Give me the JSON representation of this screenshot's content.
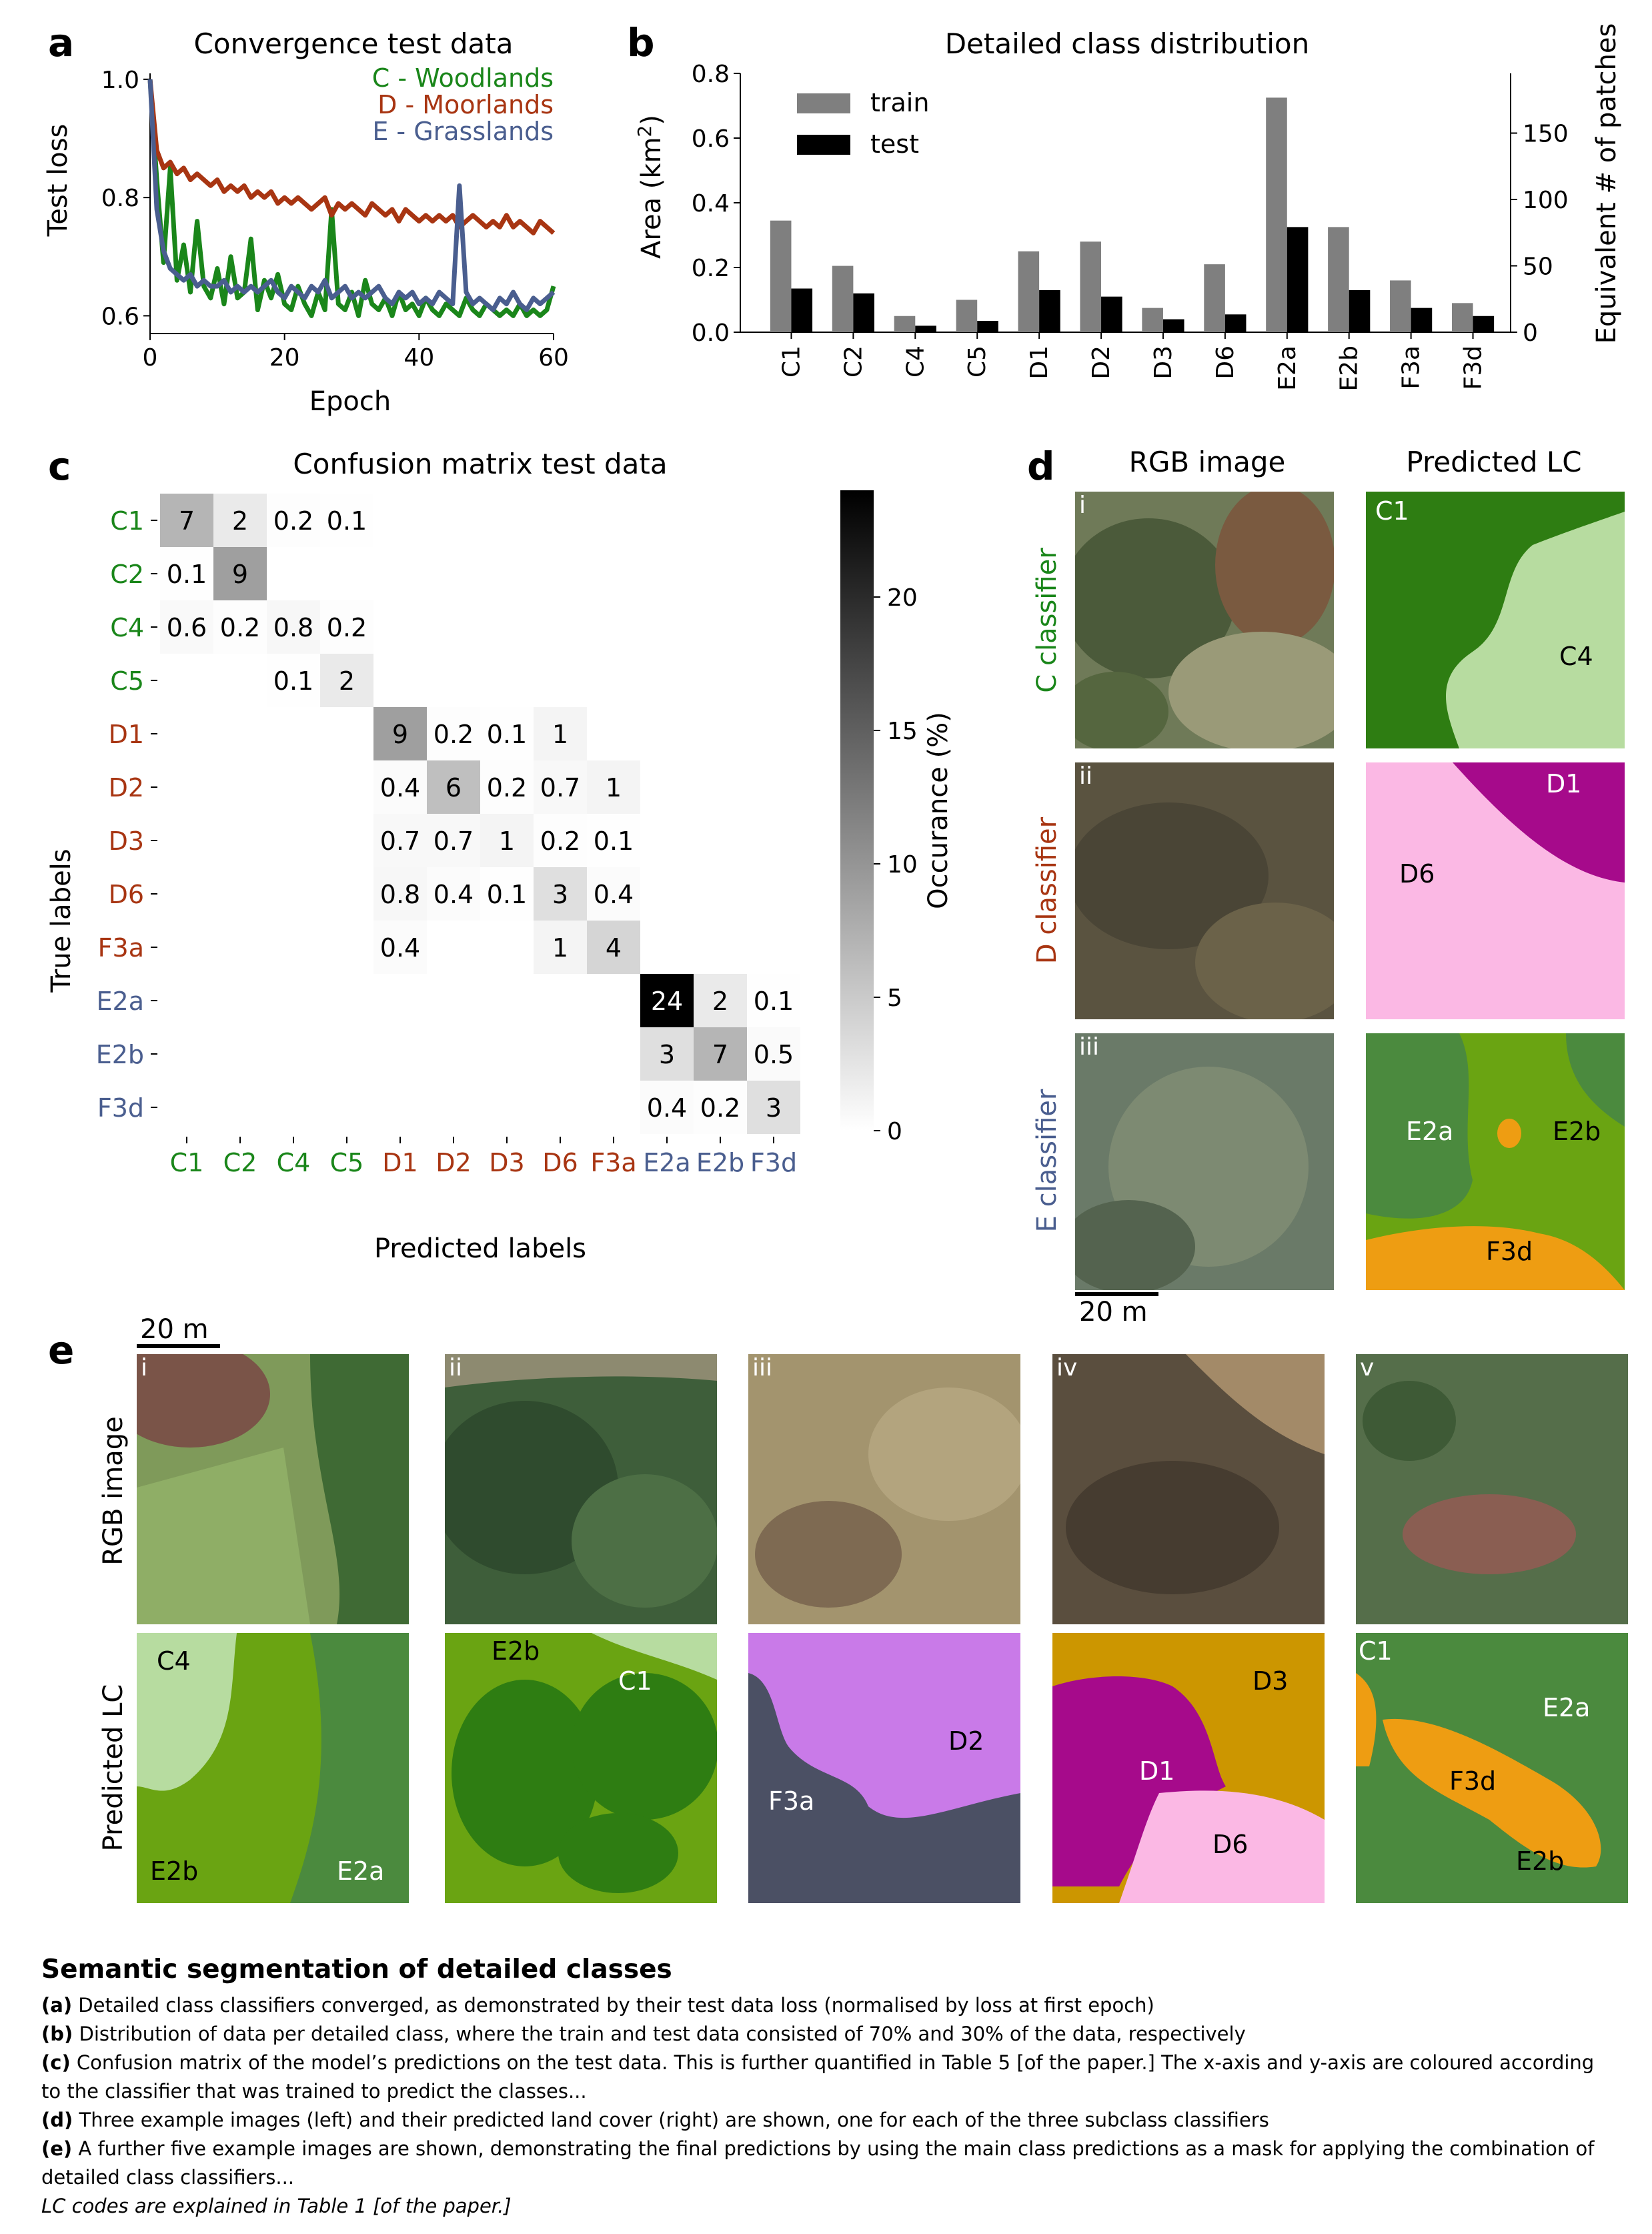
{
  "panels": {
    "a": "a",
    "b": "b",
    "c": "c",
    "d": "d",
    "e": "e"
  },
  "panel_a": {
    "title": "Convergence test data",
    "xlabel": "Epoch",
    "ylabel": "Test loss",
    "yticks": [
      "0.6",
      "0.8",
      "1.0"
    ],
    "xticks": [
      "0",
      "20",
      "40",
      "60"
    ],
    "legend": [
      {
        "label": "C - Woodlands",
        "color": "#1a861a"
      },
      {
        "label": "D - Moorlands",
        "color": "#a83512"
      },
      {
        "label": "E - Grasslands",
        "color": "#4a5e8f"
      }
    ]
  },
  "panel_b": {
    "title": "Detailed class distribution",
    "ylabel_left": "Area (km²)",
    "ylabel_right": "Equivalent # of patches",
    "yticks_left": [
      "0.0",
      "0.2",
      "0.4",
      "0.6",
      "0.8"
    ],
    "yticks_right": [
      "0",
      "50",
      "100",
      "150"
    ],
    "legend": [
      {
        "label": "train",
        "color": "#7f7f7f"
      },
      {
        "label": "test",
        "color": "#000000"
      }
    ]
  },
  "panel_c": {
    "title": "Confusion matrix test data",
    "xlabel": "Predicted labels",
    "ylabel": "True labels",
    "colorbar_label": "Occurance (%)",
    "colorbar_ticks": [
      "0",
      "5",
      "10",
      "15",
      "20"
    ]
  },
  "panel_d": {
    "col1_title": "RGB image",
    "col2_title": "Predicted LC",
    "rows": [
      {
        "label": "C classifier",
        "color": "#1a861a",
        "tag": "i"
      },
      {
        "label": "D classifier",
        "color": "#a83512",
        "tag": "ii"
      },
      {
        "label": "E classifier",
        "color": "#4a5e8f",
        "tag": "iii"
      }
    ],
    "scale": "20 m",
    "lc_labels": [
      "C1",
      "C4",
      "D1",
      "D6",
      "E2a",
      "E2b",
      "F3d"
    ]
  },
  "panel_e": {
    "scale": "20 m",
    "row1": "RGB image",
    "row2": "Predicted LC",
    "tags": [
      "i",
      "ii",
      "iii",
      "iv",
      "v"
    ],
    "lc_labels": [
      "C4",
      "E2b",
      "E2a",
      "E2b",
      "C1",
      "F3a",
      "D2",
      "D3",
      "D1",
      "D6",
      "C1",
      "E2a",
      "F3d",
      "E2b"
    ]
  },
  "caption": {
    "title": "Semantic segmentation of detailed classes",
    "a_label": "(a)",
    "a_text": " Detailed class classifiers converged, as demonstrated by their test data loss (normalised by loss at first epoch)",
    "b_label": "(b)",
    "b_text": " Distribution of data per detailed class, where the train and test data consisted of 70% and 30% of the data, respectively",
    "c_label": "(c)",
    "c_text": " Confusion matrix of the model’s predictions on the test data. This is further quantified in Table 5 [of the paper.] The x-axis and y-axis are coloured according to the classifier that was trained to predict the classes...",
    "d_label": "(d)",
    "d_text": " Three example images (left) and their predicted land cover (right) are shown, one for each of the three subclass classifiers",
    "e_label": "(e)",
    "e_text": " A further five example images are shown, demonstrating the final predictions by using the main class predictions as a mask for applying the combination of detailed class classifiers...",
    "footnote": "LC codes are explained in Table 1 [of the paper.]"
  },
  "chart_data": [
    {
      "type": "line",
      "title": "Convergence test data",
      "xlabel": "Epoch",
      "ylabel": "Test loss",
      "xlim": [
        0,
        60
      ],
      "ylim": [
        0.57,
        1.01
      ],
      "series": [
        {
          "name": "C - Woodlands",
          "color": "#1a861a",
          "values": [
            1.0,
            0.83,
            0.69,
            0.85,
            0.66,
            0.72,
            0.64,
            0.76,
            0.65,
            0.63,
            0.68,
            0.62,
            0.7,
            0.63,
            0.64,
            0.73,
            0.61,
            0.66,
            0.63,
            0.67,
            0.62,
            0.61,
            0.65,
            0.62,
            0.6,
            0.64,
            0.61,
            0.78,
            0.62,
            0.61,
            0.64,
            0.6,
            0.66,
            0.62,
            0.61,
            0.63,
            0.6,
            0.64,
            0.61,
            0.62,
            0.6,
            0.63,
            0.61,
            0.6,
            0.62,
            0.61,
            0.6,
            0.63,
            0.61,
            0.6,
            0.62,
            0.61,
            0.6,
            0.61,
            0.6,
            0.62,
            0.6,
            0.61,
            0.6,
            0.61,
            0.65
          ]
        },
        {
          "name": "D - Moorlands",
          "color": "#a83512",
          "values": [
            1.0,
            0.88,
            0.85,
            0.86,
            0.84,
            0.85,
            0.83,
            0.84,
            0.83,
            0.82,
            0.83,
            0.81,
            0.82,
            0.81,
            0.82,
            0.8,
            0.81,
            0.8,
            0.81,
            0.79,
            0.8,
            0.79,
            0.8,
            0.79,
            0.78,
            0.79,
            0.8,
            0.77,
            0.79,
            0.78,
            0.79,
            0.78,
            0.77,
            0.79,
            0.78,
            0.77,
            0.78,
            0.76,
            0.78,
            0.77,
            0.76,
            0.77,
            0.76,
            0.77,
            0.76,
            0.77,
            0.75,
            0.76,
            0.77,
            0.76,
            0.75,
            0.76,
            0.75,
            0.77,
            0.75,
            0.76,
            0.75,
            0.74,
            0.76,
            0.75,
            0.74
          ]
        },
        {
          "name": "E - Grasslands",
          "color": "#4a5e8f",
          "values": [
            1.0,
            0.78,
            0.71,
            0.68,
            0.67,
            0.66,
            0.67,
            0.65,
            0.66,
            0.65,
            0.65,
            0.66,
            0.64,
            0.65,
            0.64,
            0.65,
            0.64,
            0.65,
            0.66,
            0.64,
            0.63,
            0.65,
            0.64,
            0.63,
            0.65,
            0.64,
            0.66,
            0.63,
            0.64,
            0.65,
            0.63,
            0.64,
            0.63,
            0.64,
            0.65,
            0.63,
            0.62,
            0.64,
            0.63,
            0.64,
            0.62,
            0.63,
            0.62,
            0.64,
            0.63,
            0.62,
            0.82,
            0.64,
            0.62,
            0.63,
            0.62,
            0.61,
            0.63,
            0.62,
            0.64,
            0.62,
            0.61,
            0.63,
            0.62,
            0.63,
            0.64
          ]
        }
      ]
    },
    {
      "type": "bar",
      "title": "Detailed class distribution",
      "ylabel": "Area (km²)",
      "ylabel_right": "Equivalent # of patches",
      "ylim": [
        0,
        0.8
      ],
      "ylim_right": [
        0,
        195
      ],
      "categories": [
        "C1",
        "C2",
        "C4",
        "C5",
        "D1",
        "D2",
        "D3",
        "D6",
        "E2a",
        "E2b",
        "F3a",
        "F3d"
      ],
      "series": [
        {
          "name": "train",
          "color": "#7f7f7f",
          "values": [
            0.345,
            0.205,
            0.05,
            0.1,
            0.25,
            0.28,
            0.075,
            0.21,
            0.725,
            0.325,
            0.16,
            0.09
          ]
        },
        {
          "name": "test",
          "color": "#000000",
          "values": [
            0.135,
            0.12,
            0.02,
            0.035,
            0.13,
            0.11,
            0.04,
            0.055,
            0.325,
            0.13,
            0.075,
            0.05
          ]
        }
      ]
    },
    {
      "type": "heatmap",
      "title": "Confusion matrix test data",
      "xlabel": "Predicted labels",
      "ylabel": "True labels",
      "colorbar_label": "Occurance (%)",
      "vmin": 0,
      "vmax": 24,
      "labels": [
        "C1",
        "C2",
        "C4",
        "C5",
        "D1",
        "D2",
        "D3",
        "D6",
        "F3a",
        "E2a",
        "E2b",
        "F3d"
      ],
      "label_colors": [
        "#1a861a",
        "#1a861a",
        "#1a861a",
        "#1a861a",
        "#a83512",
        "#a83512",
        "#a83512",
        "#a83512",
        "#a83512",
        "#4a5e8f",
        "#4a5e8f",
        "#4a5e8f"
      ],
      "cells": [
        [
          0,
          0,
          7,
          "7"
        ],
        [
          0,
          1,
          2,
          "2"
        ],
        [
          0,
          2,
          0.2,
          "0.2"
        ],
        [
          0,
          3,
          0.1,
          "0.1"
        ],
        [
          1,
          0,
          0.1,
          "0.1"
        ],
        [
          1,
          1,
          9,
          "9"
        ],
        [
          2,
          0,
          0.6,
          "0.6"
        ],
        [
          2,
          1,
          0.2,
          "0.2"
        ],
        [
          2,
          2,
          0.8,
          "0.8"
        ],
        [
          2,
          3,
          0.2,
          "0.2"
        ],
        [
          3,
          2,
          0.1,
          "0.1"
        ],
        [
          3,
          3,
          2,
          "2"
        ],
        [
          4,
          4,
          9,
          "9"
        ],
        [
          4,
          5,
          0.2,
          "0.2"
        ],
        [
          4,
          6,
          0.1,
          "0.1"
        ],
        [
          4,
          7,
          1,
          "1"
        ],
        [
          5,
          4,
          0.4,
          "0.4"
        ],
        [
          5,
          5,
          6,
          "6"
        ],
        [
          5,
          6,
          0.2,
          "0.2"
        ],
        [
          5,
          7,
          0.7,
          "0.7"
        ],
        [
          5,
          8,
          1,
          "1"
        ],
        [
          6,
          4,
          0.7,
          "0.7"
        ],
        [
          6,
          5,
          0.7,
          "0.7"
        ],
        [
          6,
          6,
          1,
          "1"
        ],
        [
          6,
          7,
          0.2,
          "0.2"
        ],
        [
          6,
          8,
          0.1,
          "0.1"
        ],
        [
          7,
          4,
          0.8,
          "0.8"
        ],
        [
          7,
          5,
          0.4,
          "0.4"
        ],
        [
          7,
          6,
          0.1,
          "0.1"
        ],
        [
          7,
          7,
          3,
          "3"
        ],
        [
          7,
          8,
          0.4,
          "0.4"
        ],
        [
          8,
          4,
          0.4,
          "0.4"
        ],
        [
          8,
          7,
          1,
          "1"
        ],
        [
          8,
          8,
          4,
          "4"
        ],
        [
          9,
          9,
          24,
          "24"
        ],
        [
          9,
          10,
          2,
          "2"
        ],
        [
          9,
          11,
          0.1,
          "0.1"
        ],
        [
          10,
          9,
          3,
          "3"
        ],
        [
          10,
          10,
          7,
          "7"
        ],
        [
          10,
          11,
          0.5,
          "0.5"
        ],
        [
          11,
          9,
          0.4,
          "0.4"
        ],
        [
          11,
          10,
          0.2,
          "0.2"
        ],
        [
          11,
          11,
          3,
          "3"
        ]
      ]
    }
  ]
}
